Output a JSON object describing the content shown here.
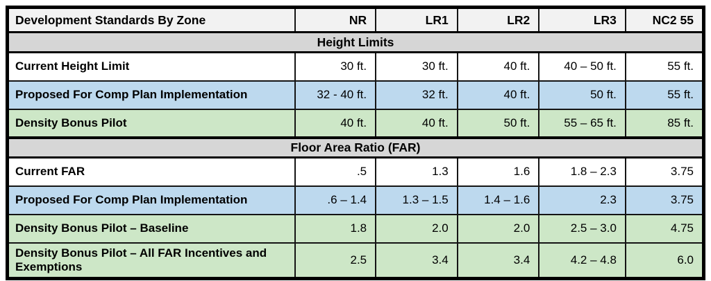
{
  "chart_data": {
    "type": "table",
    "title": "Development Standards By Zone",
    "columns": [
      "NR",
      "LR1",
      "LR2",
      "LR3",
      "NC2 55"
    ],
    "sections": [
      {
        "header": "Height Limits",
        "rows": [
          {
            "label": "Current Height Limit",
            "row_color": "white",
            "values": [
              "30 ft.",
              "30 ft.",
              "40 ft.",
              "40 – 50 ft.",
              "55 ft."
            ]
          },
          {
            "label": "Proposed For Comp Plan Implementation",
            "row_color": "blue",
            "values": [
              "32 - 40 ft.",
              "32 ft.",
              "40 ft.",
              "50 ft.",
              "55 ft."
            ]
          },
          {
            "label": "Density Bonus Pilot",
            "row_color": "green",
            "values": [
              "40 ft.",
              "40 ft.",
              "50 ft.",
              "55 – 65 ft.",
              "85 ft."
            ]
          }
        ]
      },
      {
        "header": "Floor Area Ratio (FAR)",
        "rows": [
          {
            "label": "Current FAR",
            "row_color": "white",
            "values": [
              ".5",
              "1.3",
              "1.6",
              "1.8 – 2.3",
              "3.75"
            ]
          },
          {
            "label": "Proposed For Comp Plan Implementation",
            "row_color": "blue",
            "values": [
              ".6 – 1.4",
              "1.3 – 1.5",
              "1.4 – 1.6",
              "2.3",
              "3.75"
            ]
          },
          {
            "label": "Density Bonus Pilot – Baseline",
            "row_color": "green",
            "values": [
              "1.8",
              "2.0",
              "2.0",
              "2.5 – 3.0",
              "4.75"
            ]
          },
          {
            "label": "Density Bonus Pilot – All FAR Incentives and Exemptions",
            "row_color": "green",
            "values": [
              "2.5",
              "3.4",
              "3.4",
              "4.2 – 4.8",
              "6.0"
            ]
          }
        ]
      }
    ],
    "colors": {
      "row_blue": "#bdd9ee",
      "row_green": "#cde7c7",
      "section_header_bg": "#d6d6d6",
      "column_header_bg": "#f2f2f2",
      "border": "#000000"
    }
  }
}
